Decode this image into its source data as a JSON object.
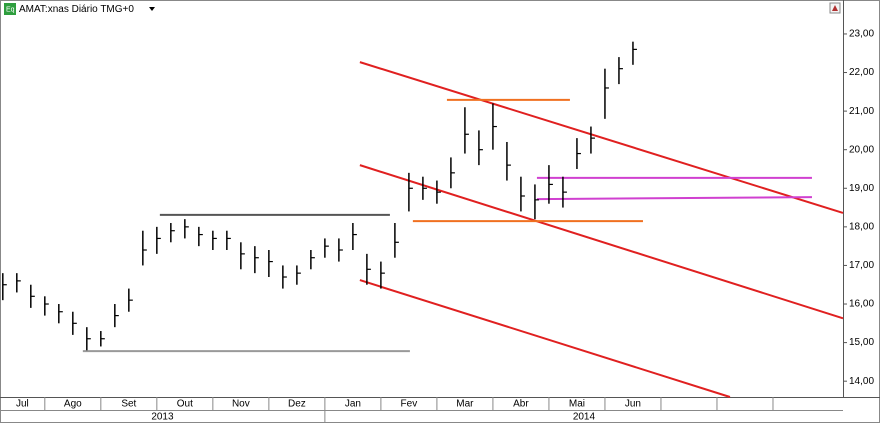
{
  "chart_data": {
    "type": "ohlc",
    "title": "AMAT:xnas Diário TMG+0",
    "categories": [
      "Jul",
      "Ago",
      "Set",
      "Out",
      "Nov",
      "Dez",
      "Jan",
      "Fev",
      "Mar",
      "Abr",
      "Mai",
      "Jun",
      null,
      null,
      null
    ],
    "year_groups": [
      {
        "name": "2013",
        "start": 0
      },
      {
        "name": "2014",
        "start": 6
      }
    ],
    "xlim": [
      0.2,
      15.25
    ],
    "ylim": [
      13.59,
      23.88
    ],
    "yticks": [
      {
        "value": 14,
        "label": "14,00"
      },
      {
        "value": 15,
        "label": "15,00"
      },
      {
        "value": 16,
        "label": "16,00"
      },
      {
        "value": 17,
        "label": "17,00"
      },
      {
        "value": 18,
        "label": "18,00"
      },
      {
        "value": 19,
        "label": "19,00"
      },
      {
        "value": 20,
        "label": "20,00"
      },
      {
        "value": 21,
        "label": "21,00"
      },
      {
        "value": 22,
        "label": "22,00"
      },
      {
        "value": 23,
        "label": "23,00"
      }
    ],
    "color": "#000000",
    "x": [
      0.25,
      0.5,
      0.75,
      1.0,
      1.25,
      1.5,
      1.75,
      2.0,
      2.25,
      2.5,
      2.75,
      3.0,
      3.25,
      3.5,
      3.75,
      4.0,
      4.25,
      4.5,
      4.75,
      5.0,
      5.25,
      5.5,
      5.75,
      6.0,
      6.25,
      6.5,
      6.75,
      7.0,
      7.25,
      7.5,
      7.75,
      8.0,
      8.25,
      8.5,
      8.75,
      9.0,
      9.25,
      9.5,
      9.75,
      10.0,
      10.25,
      10.5,
      10.75,
      11.0,
      11.25,
      11.5
    ],
    "high": [
      16.8,
      16.8,
      16.5,
      16.2,
      16.0,
      15.8,
      15.4,
      15.3,
      16.0,
      16.4,
      17.9,
      18.0,
      18.1,
      18.2,
      18.0,
      17.9,
      17.9,
      17.6,
      17.5,
      17.4,
      17.0,
      17.0,
      17.4,
      17.7,
      17.7,
      18.1,
      17.3,
      17.1,
      18.1,
      19.4,
      19.3,
      19.2,
      19.8,
      21.1,
      20.5,
      21.2,
      20.2,
      19.3,
      19.1,
      19.6,
      19.3,
      20.3,
      20.6,
      22.1,
      22.4,
      22.8
    ],
    "low": [
      16.1,
      16.3,
      15.9,
      15.7,
      15.5,
      15.2,
      14.8,
      14.9,
      15.4,
      15.8,
      17.0,
      17.3,
      17.6,
      17.7,
      17.5,
      17.4,
      17.4,
      16.9,
      16.8,
      16.7,
      16.4,
      16.5,
      16.9,
      17.2,
      17.1,
      17.4,
      16.5,
      16.4,
      17.2,
      18.4,
      18.7,
      18.6,
      19.0,
      19.9,
      19.6,
      20.0,
      19.2,
      18.4,
      18.2,
      18.6,
      18.5,
      19.5,
      19.9,
      20.8,
      21.7,
      22.2
    ],
    "close": [
      16.5,
      16.6,
      16.2,
      16.0,
      15.8,
      15.5,
      15.1,
      15.1,
      15.7,
      16.1,
      17.4,
      17.7,
      17.9,
      18.0,
      17.8,
      17.7,
      17.7,
      17.3,
      17.2,
      17.1,
      16.7,
      16.8,
      17.2,
      17.5,
      17.4,
      17.8,
      16.9,
      16.8,
      17.6,
      19.0,
      19.0,
      18.9,
      19.4,
      20.4,
      20.0,
      20.6,
      19.6,
      18.8,
      18.7,
      19.1,
      18.9,
      19.9,
      20.3,
      21.6,
      22.1,
      22.6
    ],
    "trendlines": [
      {
        "color": "#e02020",
        "x": [
          6.625,
          15.25
        ],
        "y": [
          22.27,
          18.36
        ]
      },
      {
        "color": "#e02020",
        "x": [
          6.625,
          15.25
        ],
        "y": [
          19.6,
          15.63
        ]
      },
      {
        "color": "#e02020",
        "x": [
          6.625,
          13.232
        ],
        "y": [
          16.62,
          13.59
        ]
      },
      {
        "color": "#f07020",
        "x": [
          8.179,
          10.375
        ],
        "y": [
          21.29,
          21.29
        ]
      },
      {
        "color": "#f07020",
        "x": [
          7.571,
          11.679
        ],
        "y": [
          18.15,
          18.15
        ]
      },
      {
        "color": "#d040d0",
        "x": [
          9.786,
          14.696
        ],
        "y": [
          19.27,
          19.27
        ]
      },
      {
        "color": "#d040d0",
        "x": [
          9.786,
          14.696
        ],
        "y": [
          18.72,
          18.77
        ]
      },
      {
        "color": "#555555",
        "x": [
          3.054,
          7.161
        ],
        "y": [
          18.31,
          18.31
        ]
      },
      {
        "color": "#999999",
        "x": [
          1.679,
          7.518
        ],
        "y": [
          14.78,
          14.78
        ]
      }
    ]
  }
}
